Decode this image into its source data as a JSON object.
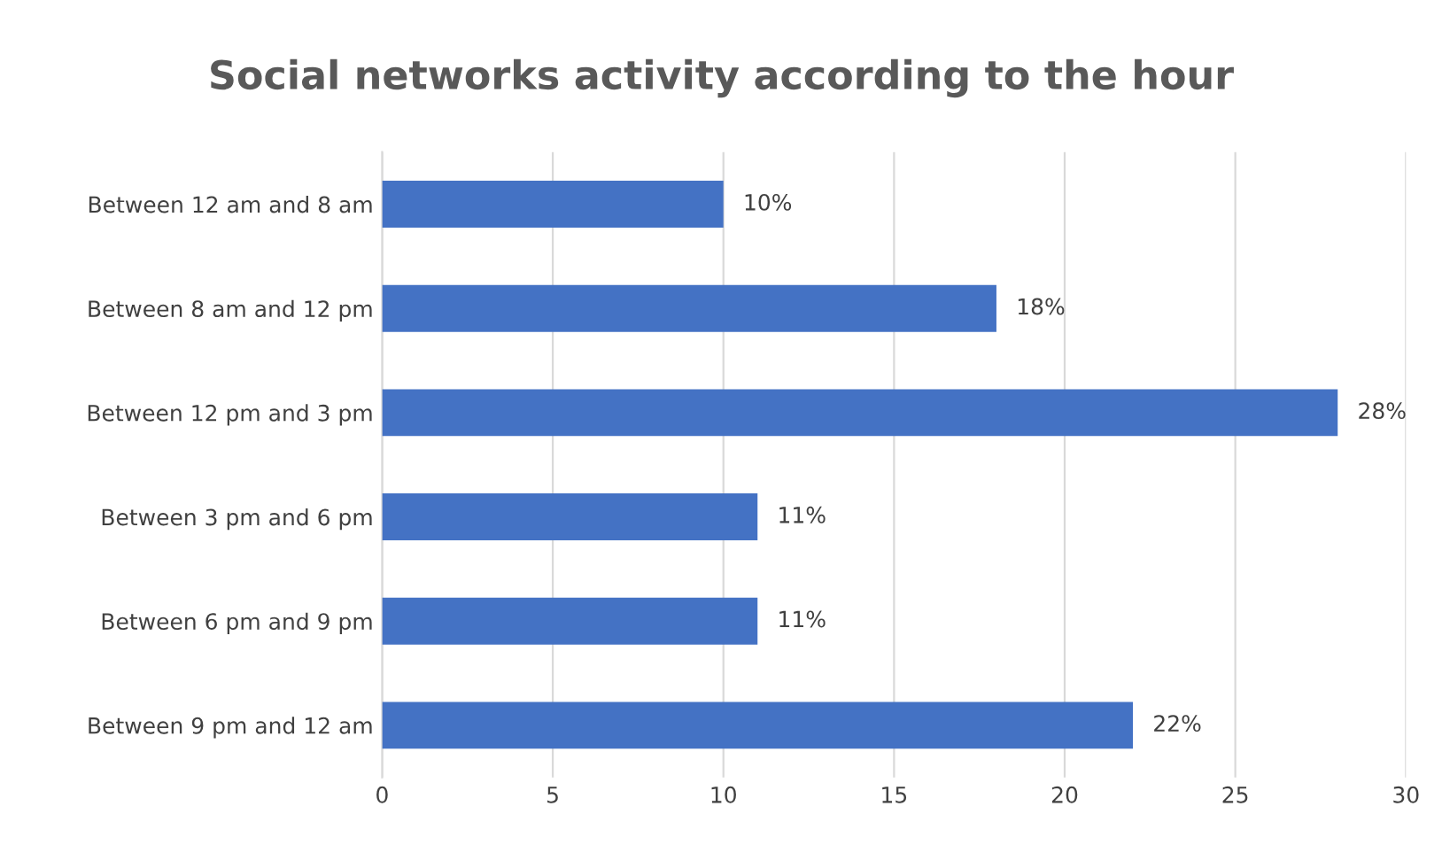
{
  "chart_data": {
    "type": "bar",
    "orientation": "horizontal",
    "title": "Social networks activity according to the hour",
    "categories": [
      "Between 12 am and 8 am",
      "Between 8 am and 12 pm",
      "Between 12 pm and 3 pm",
      "Between 3 pm and 6 pm",
      "Between 6 pm and 9 pm",
      "Between 9 pm and 12 am"
    ],
    "values": [
      10,
      18,
      28,
      11,
      11,
      22
    ],
    "value_labels": [
      "10%",
      "18%",
      "28%",
      "11%",
      "11%",
      "22%"
    ],
    "color": "#4472c4",
    "xlim": [
      0,
      30
    ],
    "xticks": [
      0,
      5,
      10,
      15,
      20,
      25,
      30
    ],
    "grid": "x"
  }
}
